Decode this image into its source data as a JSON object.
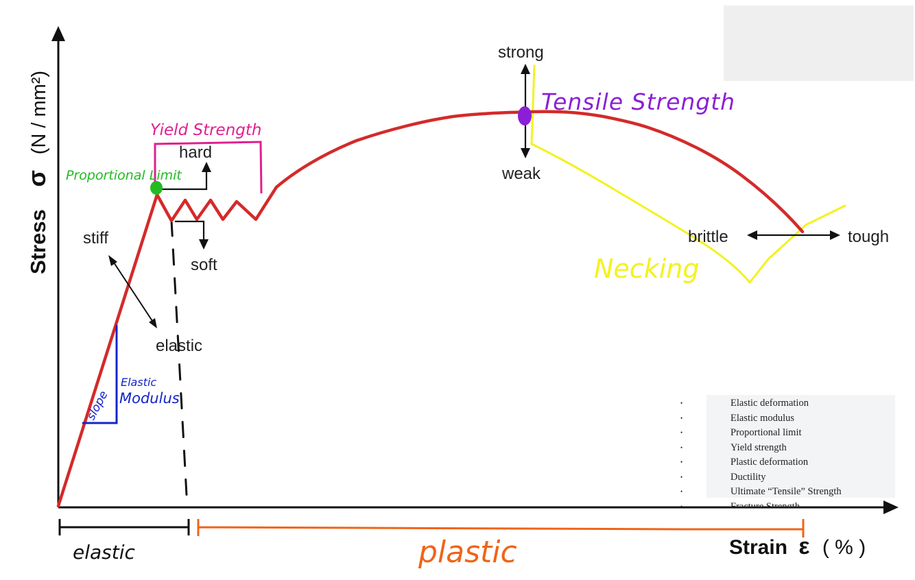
{
  "axes": {
    "y_label_text": "Stress",
    "y_label_symbol": "σ",
    "y_label_unit": "(N / mm²)",
    "x_label_text": "Strain",
    "x_label_symbol": "ε",
    "x_label_unit": "( % )"
  },
  "labels": {
    "stiff": "stiff",
    "elastic": "elastic",
    "hard": "hard",
    "soft": "soft",
    "strong": "strong",
    "weak": "weak",
    "brittle": "brittle",
    "tough": "tough"
  },
  "annotations": {
    "yield_strength": "Yield Strength",
    "proportional_limit": "Proportional Limit",
    "tensile_strength": "Tensile Strength",
    "necking": "Necking",
    "slope": "slope",
    "elastic_modulus_line1": "Elastic",
    "elastic_modulus_line2": "Modulus",
    "elastic_region": "elastic",
    "plastic_region": "plastic"
  },
  "terms": [
    "Elastic deformation",
    "Elastic modulus",
    "Proportional limit",
    "Yield strength",
    "Plastic deformation",
    "Ductility",
    "Ultimate “Tensile” Strength",
    "Fracture Strength"
  ],
  "colors": {
    "curve": "#d42a2a",
    "yield": "#e0208c",
    "proportional": "#22bb22",
    "tensile": "#8b1fd6",
    "necking": "#f4f21e",
    "modulus": "#1424c8",
    "plastic": "#f06418",
    "axis": "#111111"
  }
}
